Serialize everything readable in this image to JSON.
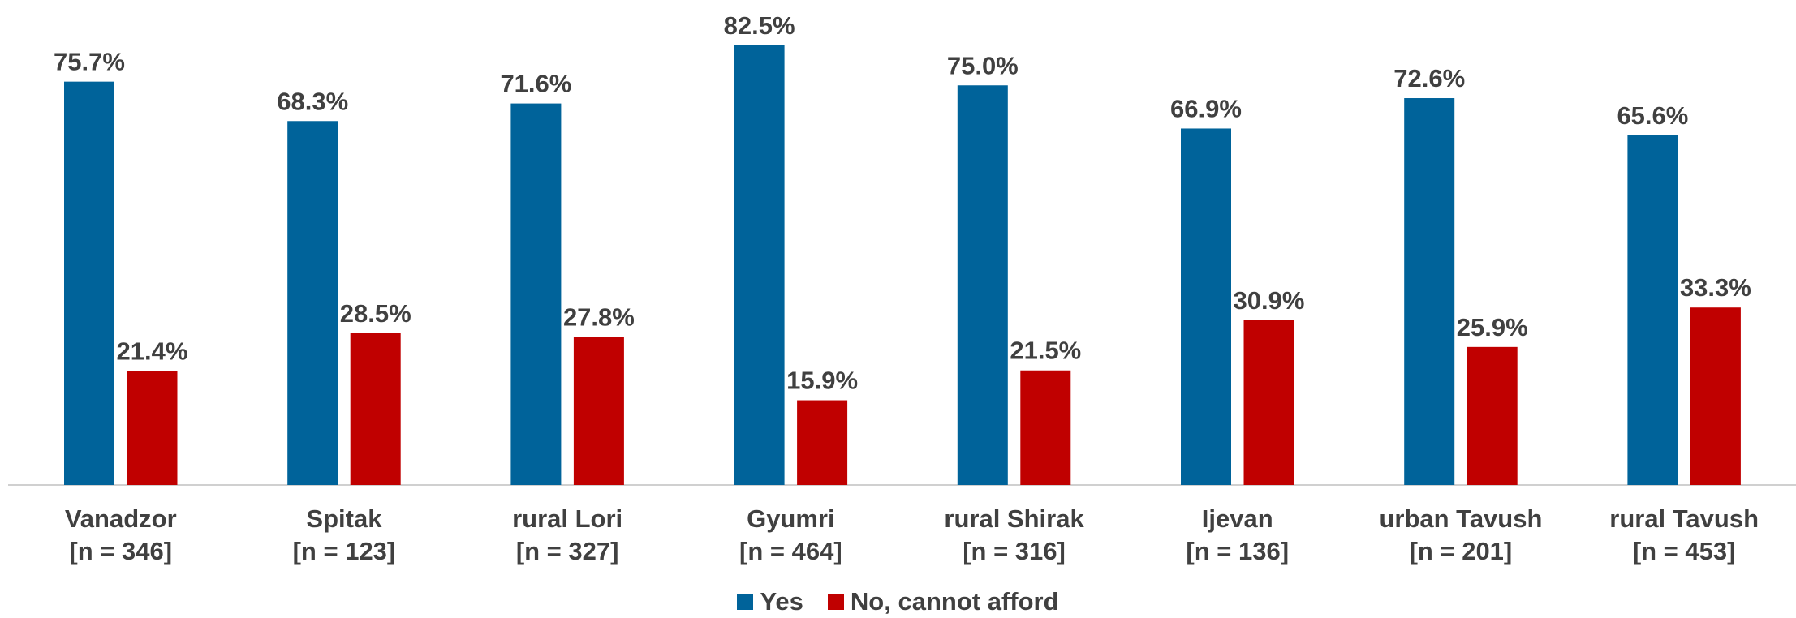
{
  "chart_data": {
    "type": "bar",
    "categories": [
      "Vanadzor\n[n = 346]",
      "Spitak\n[n = 123]",
      "rural Lori\n[n = 327]",
      "Gyumri\n[n = 464]",
      "rural Shirak\n[n = 316]",
      "Ijevan\n[n = 136]",
      "urban Tavush\n[n = 201]",
      "rural Tavush\n[n = 453]"
    ],
    "series": [
      {
        "name": "Yes",
        "color": "#00639a",
        "values": [
          75.7,
          68.3,
          71.6,
          82.5,
          75.0,
          66.9,
          72.6,
          65.6
        ],
        "value_labels": [
          "75.7%",
          "68.3%",
          "71.6%",
          "82.5%",
          "75.0%",
          "66.9%",
          "72.6%",
          "65.6%"
        ]
      },
      {
        "name": "No, cannot afford",
        "color": "#c00000",
        "values": [
          21.4,
          28.5,
          27.8,
          15.9,
          21.5,
          30.9,
          25.9,
          33.3
        ],
        "value_labels": [
          "21.4%",
          "28.5%",
          "27.8%",
          "15.9%",
          "21.5%",
          "30.9%",
          "25.9%",
          "33.3%"
        ]
      }
    ],
    "legend": "bottom"
  }
}
